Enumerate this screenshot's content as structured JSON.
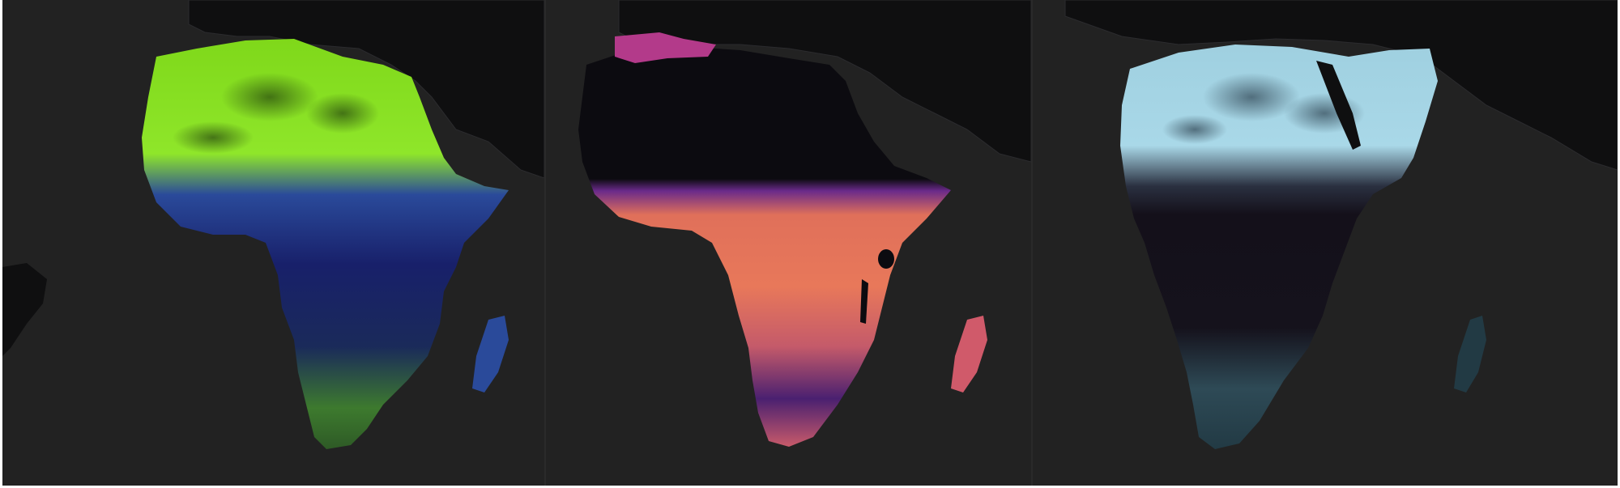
{
  "figure": {
    "background": "#222222",
    "landmass_dark": "#0f0f10",
    "border_color": "#2b2b2e",
    "panels": [
      {
        "id": "panel-1",
        "colormap": "green-blue",
        "colors": {
          "high": "#86e21c",
          "mid": "#1e3a8a",
          "low": "#1a2350",
          "south": "#3c7a2a"
        }
      },
      {
        "id": "panel-2",
        "colormap": "magma",
        "colors": {
          "high": "#f0805a",
          "mid": "#c84a6a",
          "low": "#3a1a5a",
          "north": "#b33a8a"
        }
      },
      {
        "id": "panel-3",
        "colormap": "cyan-dark",
        "colors": {
          "high": "#a9d8e8",
          "mid": "#5a8ea0",
          "low": "#14101a",
          "south": "#3a5a66"
        }
      }
    ]
  }
}
